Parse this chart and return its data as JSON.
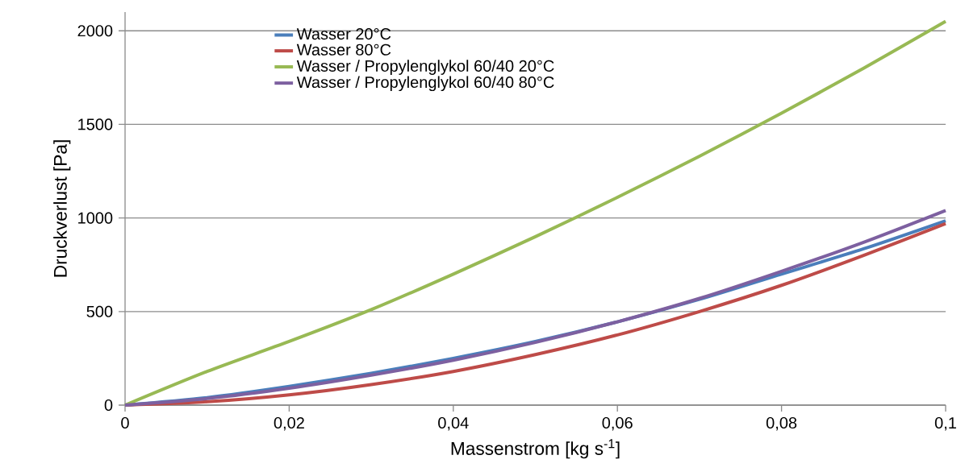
{
  "chart_data": {
    "type": "line",
    "xlabel": "Massenstrom [kg s$^{-1}$]",
    "ylabel": "Druckverlust [Pa]",
    "x": [
      0,
      0.01,
      0.02,
      0.03,
      0.04,
      0.05,
      0.06,
      0.07,
      0.08,
      0.09,
      0.1
    ],
    "series": [
      {
        "name": "Wasser 20°C",
        "color": "#4a7ebb",
        "values": [
          0,
          40,
          100,
          170,
          250,
          340,
          445,
          565,
          700,
          835,
          985
        ]
      },
      {
        "name": "Wasser 80°C",
        "color": "#be4b48",
        "values": [
          0,
          18,
          55,
          110,
          180,
          270,
          375,
          500,
          640,
          800,
          970
        ]
      },
      {
        "name": "Wasser / Propylenglykol 60/40 20°C",
        "color": "#98b954",
        "values": [
          0,
          180,
          340,
          510,
          700,
          900,
          1110,
          1330,
          1560,
          1800,
          2050
        ]
      },
      {
        "name": "Wasser / Propylenglykol 60/40 80°C",
        "color": "#7d60a0",
        "values": [
          0,
          35,
          90,
          160,
          240,
          335,
          445,
          570,
          715,
          870,
          1040
        ]
      }
    ],
    "xlim": [
      0,
      0.1
    ],
    "ylim": [
      0,
      2100
    ],
    "xticks": [
      0,
      {
        "value": 0.02,
        "label": "0,02"
      },
      {
        "value": 0.04,
        "label": "0,04"
      },
      {
        "value": 0.06,
        "label": "0,06"
      },
      {
        "value": 0.08,
        "label": "0,08"
      },
      {
        "value": 0.1,
        "label": "0,1"
      }
    ],
    "yticks": [
      0,
      500,
      1000,
      1500,
      2000
    ],
    "grid": "y",
    "legend": "top left",
    "marker": "none",
    "line_style": "solid"
  }
}
